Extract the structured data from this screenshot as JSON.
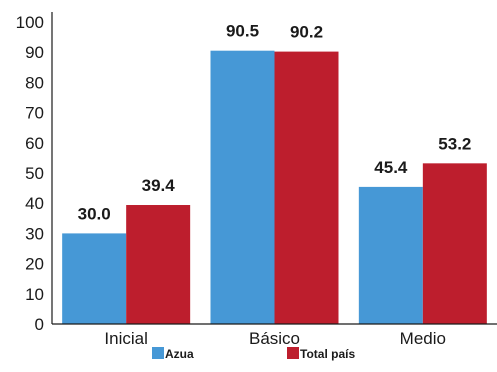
{
  "chart_data": {
    "type": "bar",
    "categories": [
      "Inicial",
      "Básico",
      "Medio"
    ],
    "series": [
      {
        "name": "Azua",
        "values": [
          30.0,
          90.5,
          45.4
        ],
        "color": "#4698D6"
      },
      {
        "name": "Total país",
        "values": [
          39.4,
          90.2,
          53.2
        ],
        "color": "#BD1E2D"
      }
    ],
    "value_labels": [
      [
        "30.0",
        "90.5",
        "45.4"
      ],
      [
        "39.4",
        "90.2",
        "53.2"
      ]
    ],
    "yticks": [
      "0",
      "10",
      "20",
      "30",
      "40",
      "50",
      "60",
      "70",
      "80",
      "90",
      "100"
    ],
    "ylim": [
      0,
      100
    ],
    "title": "",
    "xlabel": "",
    "ylabel": "",
    "grid": false,
    "legend": "bottom-center"
  }
}
